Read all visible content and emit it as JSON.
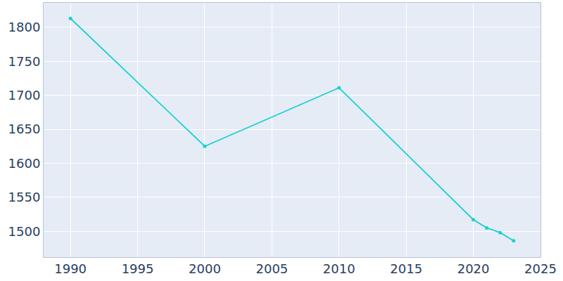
{
  "chart_data": {
    "type": "line",
    "x": [
      1990,
      2000,
      2010,
      2020,
      2021,
      2022,
      2023
    ],
    "values": [
      1813,
      1625,
      1711,
      1517,
      1505,
      1498,
      1486
    ],
    "color": "#1ccfcf",
    "marker": "circle",
    "xlim": [
      1988,
      2025
    ],
    "xticks": [
      1990,
      1995,
      2000,
      2005,
      2010,
      2015,
      2020,
      2025
    ],
    "ylim": [
      1462,
      1836
    ],
    "yticks": [
      1500,
      1550,
      1600,
      1650,
      1700,
      1750,
      1800
    ],
    "grid": true
  }
}
